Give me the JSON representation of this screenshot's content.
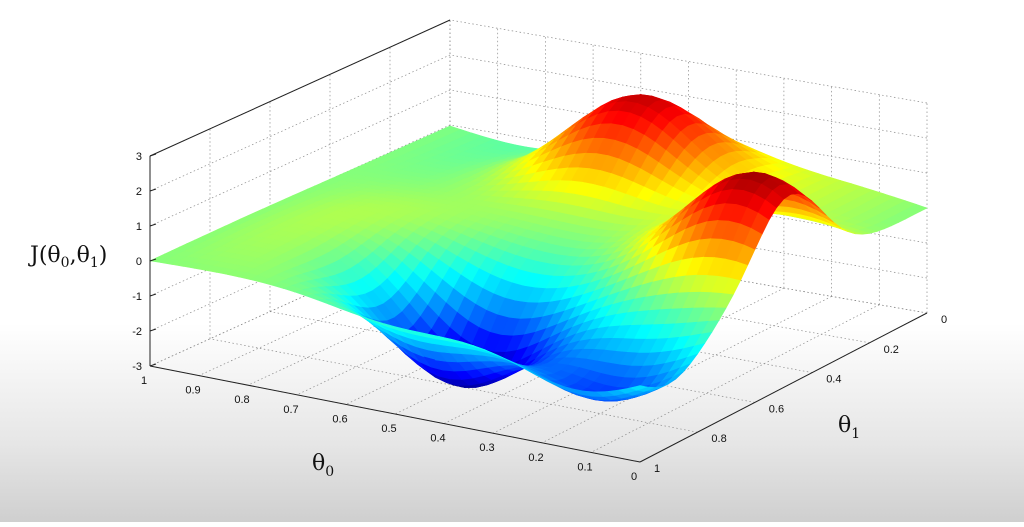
{
  "chart_data": {
    "type": "surface",
    "title": "",
    "zlabel": {
      "main": "J(θ",
      "sub0": "0",
      "comma": ",θ",
      "sub1": "1",
      "close": ")"
    },
    "xlabel": {
      "main": "θ",
      "sub": "0"
    },
    "ylabel": {
      "main": "θ",
      "sub": "1"
    },
    "x_range": [
      0,
      1
    ],
    "y_range": [
      0,
      1
    ],
    "z_range": [
      -3,
      3
    ],
    "x_ticks": [
      "0",
      "0.1",
      "0.2",
      "0.3",
      "0.4",
      "0.5",
      "0.6",
      "0.7",
      "0.8",
      "0.9",
      "1"
    ],
    "y_ticks": [
      "0",
      "0.2",
      "0.4",
      "0.6",
      "0.8",
      "1"
    ],
    "z_ticks": [
      "-3",
      "-2",
      "-1",
      "0",
      "1",
      "2",
      "3"
    ],
    "grid": true,
    "colormap": "jet",
    "colors": [
      "#00008f",
      "#0000ff",
      "#00ffff",
      "#ffff00",
      "#ff0000",
      "#800000"
    ],
    "features": [
      {
        "kind": "peak",
        "theta0": 0.52,
        "theta1": 0.15,
        "z": 2.6
      },
      {
        "kind": "peak",
        "theta0": 0.08,
        "theta1": 0.48,
        "z": 2.9
      },
      {
        "kind": "valley",
        "theta0": 0.5,
        "theta1": 0.78,
        "z": -3.0
      },
      {
        "kind": "valley",
        "theta0": 0.12,
        "theta1": 0.9,
        "z": -1.8
      }
    ]
  }
}
